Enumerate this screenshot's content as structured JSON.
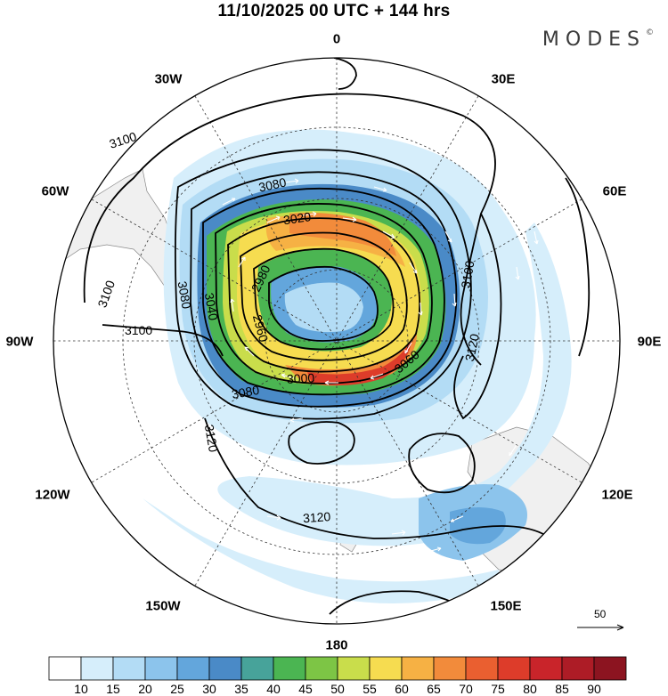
{
  "title": "11/10/2025  00 UTC  + 144 hrs",
  "brand": "MODES",
  "brand_mark": "©",
  "longitude_labels": [
    "0",
    "30E",
    "60E",
    "90E",
    "120E",
    "150E",
    "180",
    "150W",
    "120W",
    "90W",
    "60W",
    "30W"
  ],
  "contour_labels": [
    "3100",
    "3080",
    "3020",
    "2980",
    "3080",
    "3040",
    "2960",
    "3100",
    "3000",
    "3060",
    "3080",
    "3100",
    "3120",
    "3120",
    "3120",
    "3100"
  ],
  "vector_reference": "50",
  "colorbar": {
    "unit_ticks": [
      "10",
      "15",
      "20",
      "25",
      "30",
      "35",
      "40",
      "45",
      "50",
      "55",
      "60",
      "65",
      "70",
      "75",
      "80",
      "85",
      "90"
    ],
    "colors": [
      "#ffffff",
      "#d6eefb",
      "#b3dcf5",
      "#8cc4ec",
      "#63a6dc",
      "#4a8ac7",
      "#47a39a",
      "#4bb552",
      "#7dc545",
      "#c9dd4b",
      "#f6dc50",
      "#f6b144",
      "#f28b3b",
      "#ea5f30",
      "#dd3c2a",
      "#c9242a",
      "#ad1c26",
      "#8c1420"
    ]
  }
}
